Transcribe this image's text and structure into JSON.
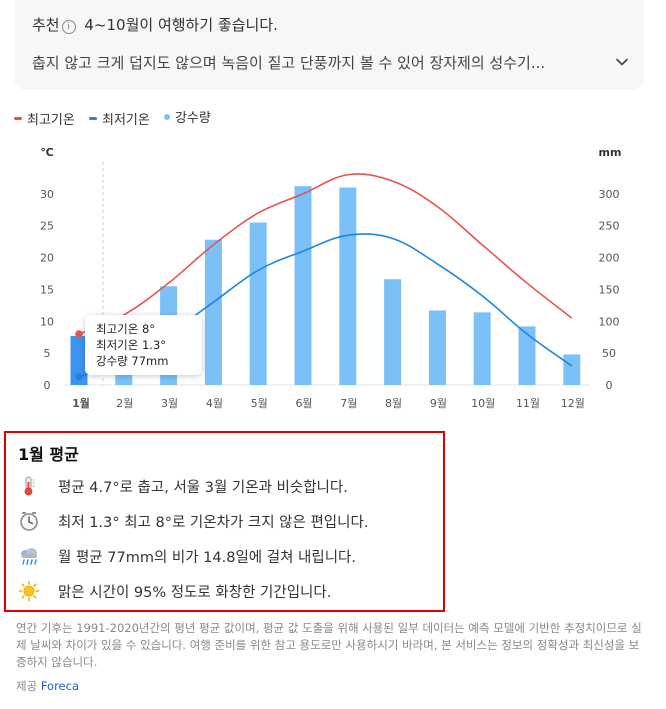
{
  "recommend": {
    "label": "추천",
    "headline": "4~10월이 여행하기 좋습니다.",
    "detail": "춥지 않고 크게 덥지도 않으며 녹음이 짙고 단풍까지 볼 수 있어 장자제의 성수기..."
  },
  "legend": {
    "high": "최고기온",
    "low": "최저기온",
    "precip": "강수량"
  },
  "colors": {
    "high": "#e8524f",
    "low": "#1a86e0",
    "precip": "#7cc0f8",
    "precip_selected": "#3d93f0",
    "highlight_border": "#e00000",
    "link": "#1a5fc9"
  },
  "chart_data": {
    "type": "bar",
    "categories": [
      "1월",
      "2월",
      "3월",
      "4월",
      "5월",
      "6월",
      "7월",
      "8월",
      "9월",
      "10월",
      "11월",
      "12월"
    ],
    "series": [
      {
        "name": "최고기온",
        "type": "line",
        "axis": "left",
        "values": [
          8,
          11,
          16,
          22,
          27,
          30,
          33,
          32,
          28,
          22,
          16,
          10.5
        ]
      },
      {
        "name": "최저기온",
        "type": "line",
        "axis": "left",
        "values": [
          1.3,
          4,
          8,
          13,
          18,
          21,
          23.5,
          23,
          19,
          14,
          8,
          3
        ]
      },
      {
        "name": "강수량",
        "type": "bar",
        "axis": "right",
        "values": [
          77,
          110,
          155,
          228,
          255,
          312,
          310,
          166,
          117,
          114,
          92,
          48
        ]
      }
    ],
    "y_left": {
      "label": "℃",
      "ticks": [
        0,
        5,
        10,
        15,
        20,
        25,
        30
      ],
      "range": [
        0,
        35
      ]
    },
    "y_right": {
      "label": "mm",
      "ticks": [
        0,
        50,
        100,
        150,
        200,
        250,
        300
      ],
      "range": [
        0,
        350
      ]
    },
    "selected_category": "1월"
  },
  "tooltip": {
    "high": "최고기온 8°",
    "low": "최저기온 1.3°",
    "precip": "강수량 77mm"
  },
  "average": {
    "title": "1월 평균",
    "rows": [
      {
        "icon": "thermometer-icon",
        "text": "평균 4.7°로 춥고, 서울 3월 기온과 비슷합니다."
      },
      {
        "icon": "clock-icon",
        "text": "최저 1.3° 최고 8°로 기온차가 크지 않은 편입니다."
      },
      {
        "icon": "rain-cloud-icon",
        "text": "월 평균 77mm의 비가 14.8일에 걸쳐 내립니다."
      },
      {
        "icon": "sun-icon",
        "text": "맑은 시간이 95% 정도로 화창한 기간입니다."
      }
    ]
  },
  "footnote": "연간 기후는 1991-2020년간의 평년 평균 값이며, 평균 값 도출을 위해 사용된 일부 데이터는 예측 모델에 기반한 추정치이므로 실제 날씨와 차이가 있을 수 있습니다. 여행 준비를 위한 참고 용도로만 사용하시기 바라며, 본 서비스는 정보의 정확성과 최신성을 보증하지 않습니다.",
  "provider": {
    "label": "제공",
    "name": "Foreca"
  }
}
